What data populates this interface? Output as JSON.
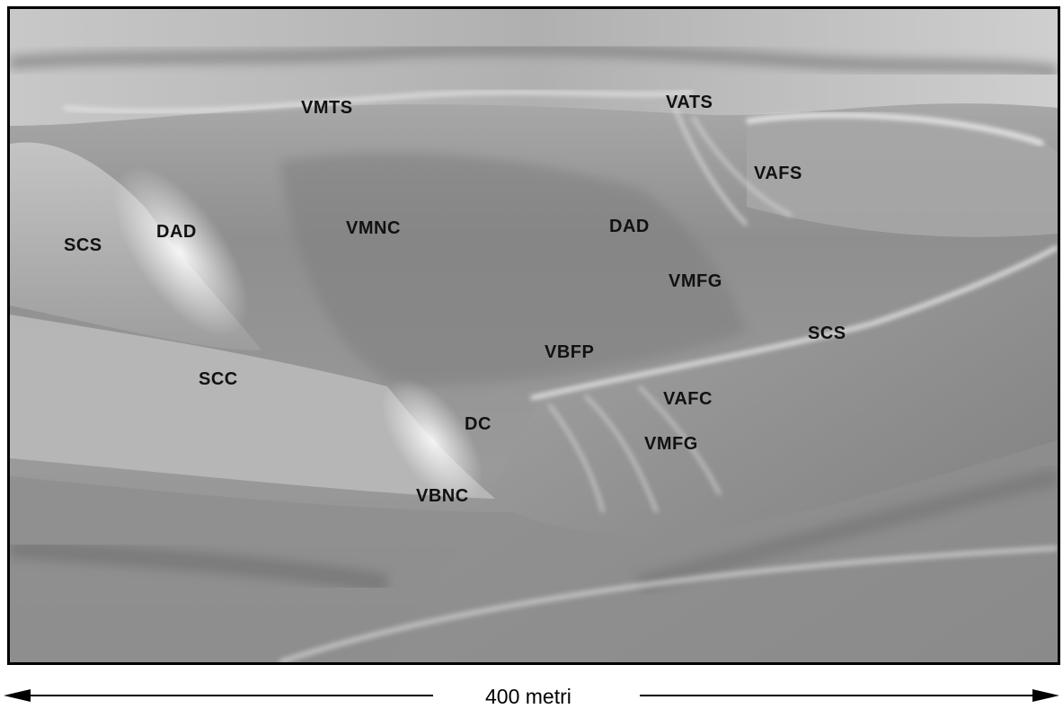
{
  "labels": {
    "vmts": "VMTS",
    "vats": "VATS",
    "vafs": "VAFS",
    "scs_left": "SCS",
    "dad_left": "DAD",
    "vmnc": "VMNC",
    "dad_right": "DAD",
    "vmfg_upper": "VMFG",
    "scs_right": "SCS",
    "vbfp": "VBFP",
    "scc": "SCC",
    "vafc": "VAFC",
    "dc": "DC",
    "vmfg_lower": "VMFG",
    "vbnc": "VBNC"
  },
  "scale": {
    "text": "400 metri"
  },
  "colors": {
    "frame": "#000000",
    "label": "#111111",
    "terrain_base": "#8d8d8d"
  }
}
